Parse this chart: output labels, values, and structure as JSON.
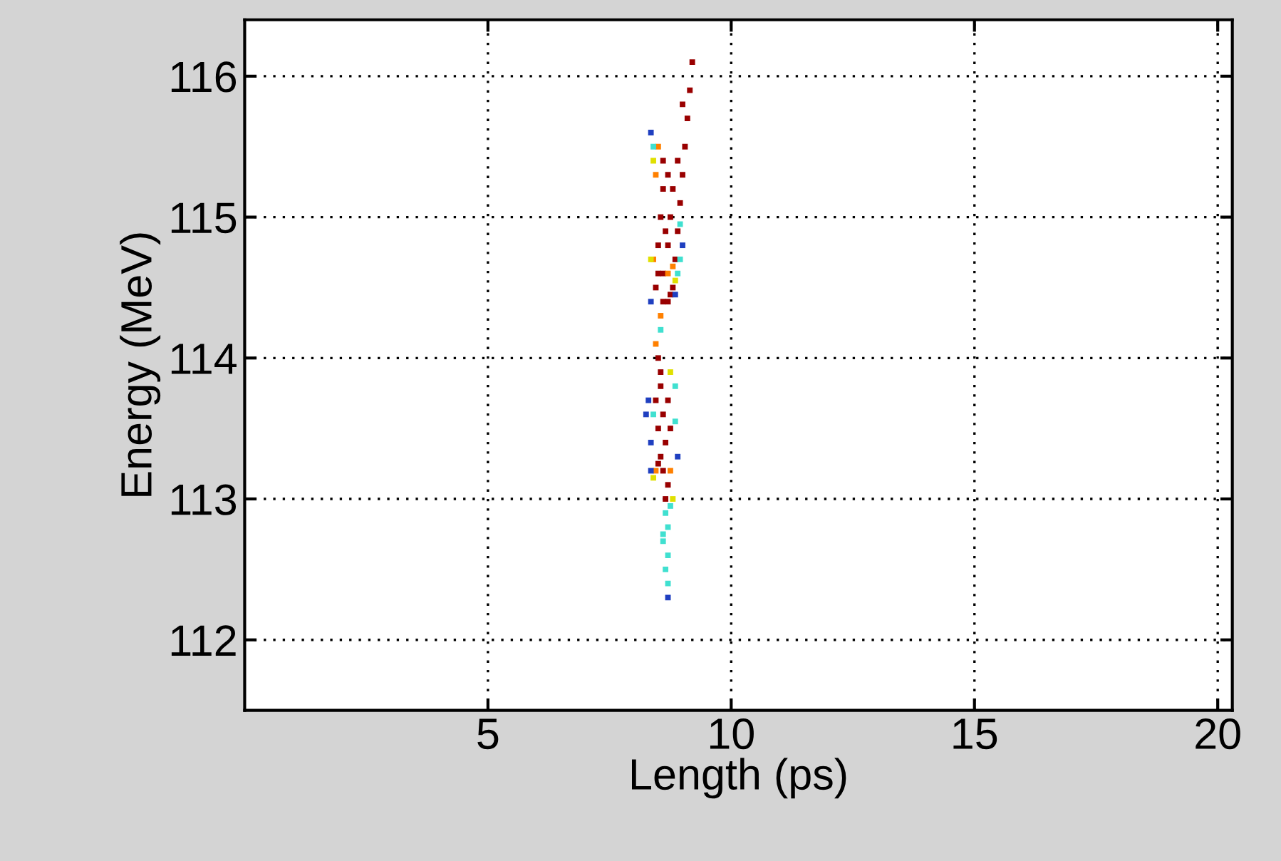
{
  "chart_data": {
    "type": "scatter",
    "xlabel": "Length (ps)",
    "ylabel": "Energy (MeV)",
    "xlim": [
      0,
      20.3
    ],
    "ylim": [
      111.5,
      116.4
    ],
    "xticks": [
      5,
      10,
      15,
      20
    ],
    "yticks": [
      112,
      113,
      114,
      115,
      116
    ],
    "grid": true,
    "marker": "square",
    "series": [
      {
        "color": "#990000",
        "x": [
          9.2,
          9.15,
          9.1,
          9.05,
          9.0,
          8.95,
          8.9,
          8.85,
          8.8,
          8.75,
          8.6,
          8.6,
          8.55,
          8.5,
          8.5,
          8.45,
          8.6,
          8.7,
          8.75,
          8.8,
          8.7,
          8.65,
          8.6,
          8.7,
          8.9,
          9.0,
          8.5,
          8.55,
          8.45,
          8.5,
          8.6,
          8.7,
          8.65,
          8.55,
          8.6,
          8.7,
          8.65,
          8.55,
          8.75,
          8.5
        ],
        "values": [
          116.1,
          115.9,
          115.7,
          115.5,
          115.3,
          115.1,
          114.9,
          114.7,
          114.5,
          114.45,
          115.4,
          115.2,
          115.0,
          114.8,
          114.6,
          114.5,
          114.6,
          114.8,
          115.0,
          115.2,
          115.3,
          114.9,
          114.4,
          114.4,
          115.4,
          115.8,
          114.0,
          113.8,
          113.7,
          113.5,
          113.6,
          113.7,
          113.4,
          113.3,
          113.2,
          113.1,
          113.0,
          113.9,
          113.5,
          113.25
        ]
      },
      {
        "color": "#ff8000",
        "x": [
          8.45,
          8.5,
          8.4,
          8.7,
          8.45,
          8.45,
          8.75,
          8.55,
          8.8
        ],
        "values": [
          115.3,
          115.5,
          114.7,
          114.6,
          114.1,
          113.2,
          113.2,
          114.3,
          114.65
        ]
      },
      {
        "color": "#e0e000",
        "x": [
          8.4,
          8.35,
          8.85,
          8.4,
          8.8,
          8.75
        ],
        "values": [
          115.4,
          114.7,
          114.55,
          113.15,
          113.0,
          113.9
        ]
      },
      {
        "color": "#40e0d0",
        "x": [
          8.95,
          8.95,
          8.9,
          8.4,
          8.85,
          8.85,
          8.4,
          8.65,
          8.7,
          8.6,
          8.7,
          8.65,
          8.7,
          8.6,
          8.75,
          8.55
        ],
        "values": [
          114.95,
          114.7,
          114.6,
          115.5,
          113.8,
          113.55,
          113.6,
          112.9,
          112.8,
          112.7,
          112.6,
          112.5,
          112.4,
          112.75,
          112.95,
          114.2
        ]
      },
      {
        "color": "#1f3fc0",
        "x": [
          8.35,
          8.35,
          8.85,
          8.3,
          8.25,
          8.35,
          8.35,
          8.9,
          8.7,
          9.0
        ],
        "values": [
          115.6,
          114.4,
          114.45,
          113.7,
          113.6,
          113.4,
          113.2,
          113.3,
          112.3,
          114.8
        ]
      }
    ]
  }
}
